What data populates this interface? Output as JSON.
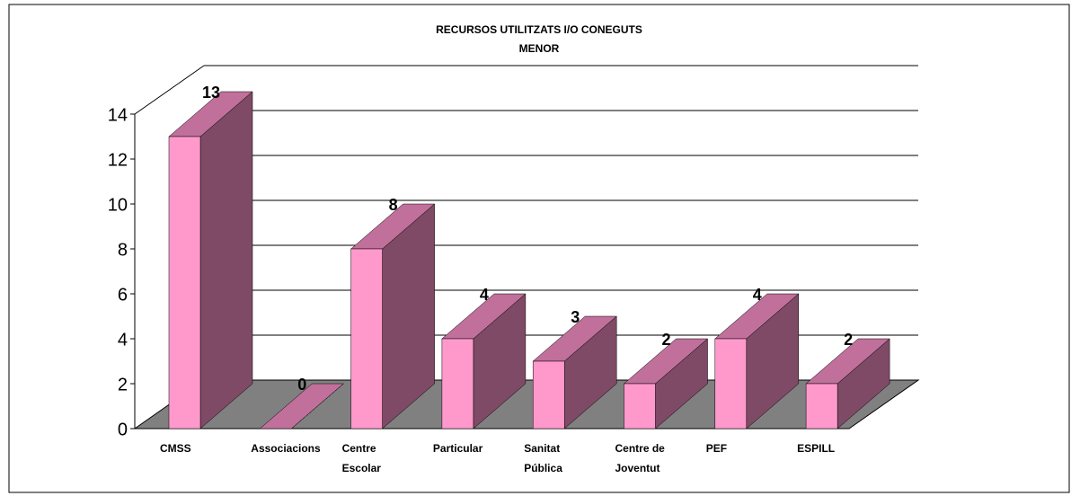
{
  "chart_data": {
    "type": "bar3d",
    "title": "RECURSOS UTILITZATS I/O CONEGUTS",
    "subtitle": "MENOR",
    "categories": [
      "CMSS",
      "Associacions",
      "Centre\nEscolar",
      "Particular",
      "Sanitat\nPública",
      "Centre de\nJoventut",
      "PEF",
      "ESPILL"
    ],
    "values": [
      13,
      0,
      8,
      4,
      3,
      2,
      4,
      2
    ],
    "color": "#ff99cc",
    "ylim": [
      0,
      14
    ],
    "yticks": [
      0,
      2,
      4,
      6,
      8,
      10,
      12,
      14
    ],
    "grid": true
  }
}
